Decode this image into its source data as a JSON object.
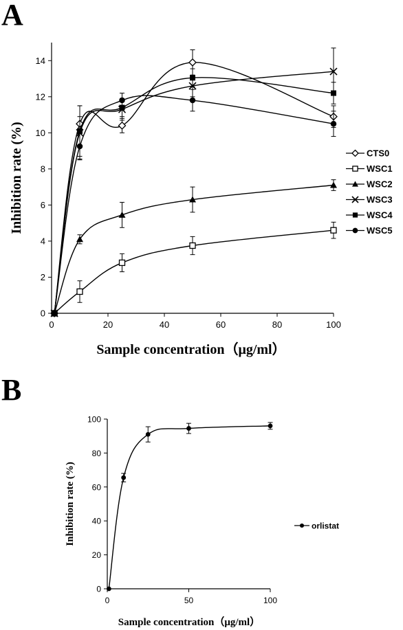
{
  "panels": {
    "a_label": "A",
    "b_label": "B"
  },
  "chart_data": [
    {
      "type": "line",
      "panel": "A",
      "title": "",
      "xlabel": "Sample concentration（μg/ml）",
      "ylabel": "Inhibition rate (%)",
      "xlim": [
        0,
        100
      ],
      "ylim": [
        0,
        15
      ],
      "xticks": [
        0,
        20,
        40,
        60,
        80,
        100
      ],
      "yticks": [
        0,
        2,
        4,
        6,
        8,
        10,
        12,
        14
      ],
      "x": [
        1,
        10,
        25,
        50,
        100
      ],
      "grid": false,
      "legend_position": "right",
      "series": [
        {
          "name": "CTS0",
          "marker": "open-diamond",
          "values": [
            0,
            10.5,
            10.4,
            13.9,
            10.9
          ],
          "errors": [
            0,
            0.4,
            0.4,
            0.7,
            0.6
          ]
        },
        {
          "name": "WSC1",
          "marker": "open-square",
          "values": [
            0,
            1.2,
            2.8,
            3.75,
            4.6
          ],
          "errors": [
            0,
            0.6,
            0.5,
            0.5,
            0.45
          ]
        },
        {
          "name": "WSC2",
          "marker": "filled-triangle",
          "values": [
            0,
            4.1,
            5.45,
            6.3,
            7.1
          ],
          "errors": [
            0,
            0.25,
            0.7,
            0.7,
            0.3
          ]
        },
        {
          "name": "WSC3",
          "marker": "cross",
          "values": [
            0,
            10.0,
            11.3,
            12.6,
            13.4
          ],
          "errors": [
            0,
            1.5,
            0.6,
            0.6,
            1.3
          ]
        },
        {
          "name": "WSC4",
          "marker": "filled-square",
          "values": [
            0,
            10.1,
            11.4,
            13.05,
            12.2
          ],
          "errors": [
            0,
            1.4,
            0.5,
            0.5,
            0.6
          ]
        },
        {
          "name": "WSC5",
          "marker": "filled-circle",
          "values": [
            0,
            9.25,
            11.8,
            11.8,
            10.5
          ],
          "errors": [
            0,
            0.7,
            0.4,
            0.6,
            0.7
          ]
        }
      ]
    },
    {
      "type": "line",
      "panel": "B",
      "title": "",
      "xlabel": "Sample concentration（μg/ml）",
      "ylabel": "Inhibition rate (%)",
      "xlim": [
        0,
        100
      ],
      "ylim": [
        0,
        100
      ],
      "xticks": [
        0,
        50,
        100
      ],
      "yticks": [
        0,
        20,
        40,
        60,
        80,
        100
      ],
      "x": [
        1,
        10,
        25,
        50,
        100
      ],
      "grid": false,
      "legend_position": "right",
      "series": [
        {
          "name": "orlistat",
          "marker": "filled-circle",
          "values": [
            0,
            65.5,
            91,
            94.5,
            96
          ],
          "errors": [
            0,
            2.5,
            4.5,
            3,
            2
          ]
        }
      ]
    }
  ]
}
